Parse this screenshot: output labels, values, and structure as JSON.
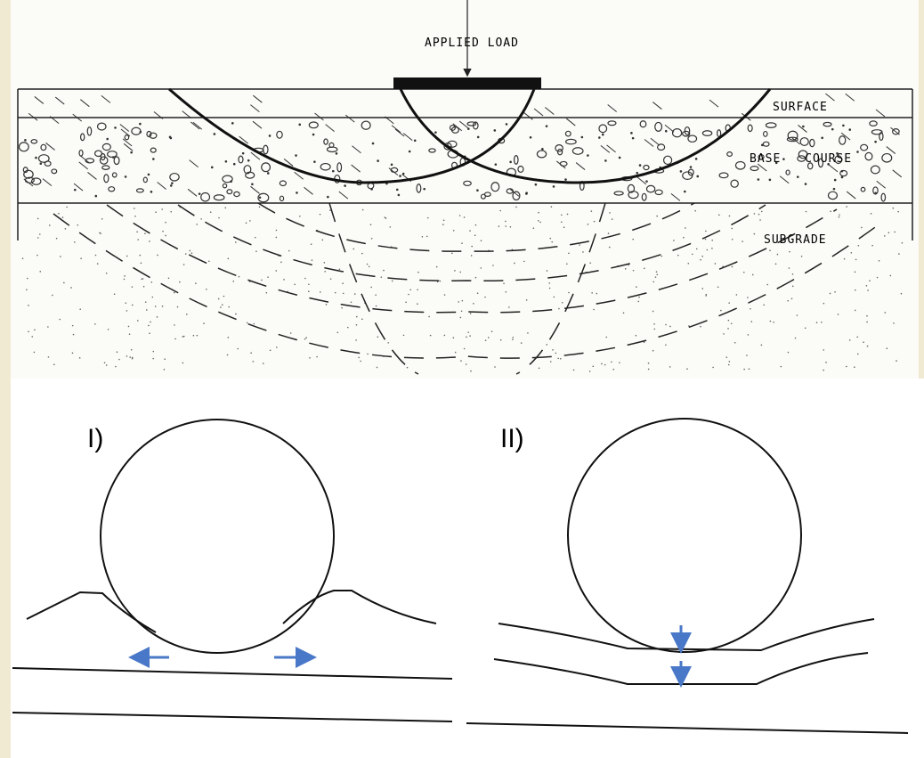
{
  "top_figure": {
    "load_label": "APPLIED LOAD",
    "layers": [
      "SURFACE",
      "BASE COURSE",
      "SUBGRADE"
    ]
  },
  "bottom_figures": [
    {
      "label": "I)"
    },
    {
      "label": "II)"
    }
  ]
}
